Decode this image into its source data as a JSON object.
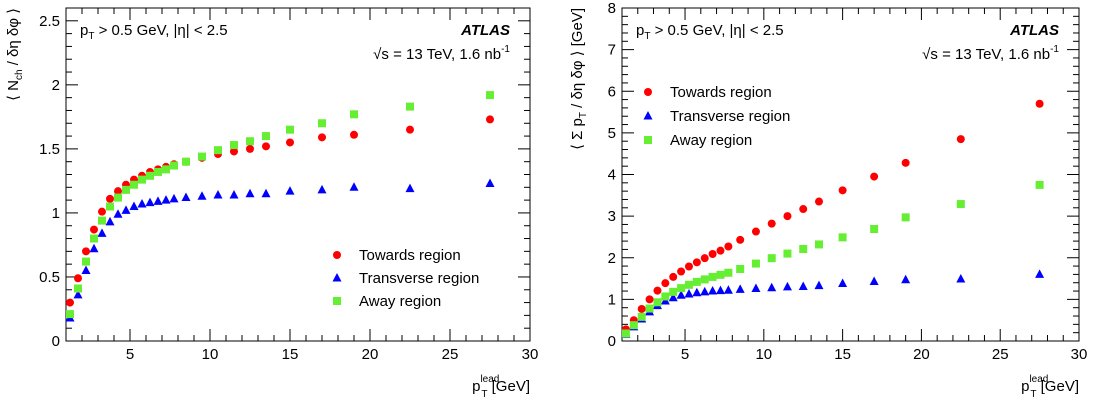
{
  "chart_data": [
    {
      "type": "scatter",
      "title": "",
      "ylabel": {
        "pre": "⟨ N",
        "sub": "ch",
        "post": "/ δη δφ ⟩"
      },
      "xlabel": {
        "pre": "p",
        "sub": "T",
        "sup": "lead",
        "post": " [GeV]"
      },
      "xlim": [
        1,
        30
      ],
      "ylim": [
        0,
        2.6
      ],
      "xticks": [
        5,
        10,
        15,
        20,
        25,
        30
      ],
      "yticks": [
        0,
        0.5,
        1,
        1.5,
        2,
        2.5
      ],
      "ytick_labels": [
        "0",
        "0.5",
        "1",
        "1.5",
        "2",
        "2.5"
      ],
      "annotations": {
        "atlas": "ATLAS",
        "cuts": {
          "p": "p",
          "sub": "T",
          "rest": " > 0.5 GeV, |η| < 2.5"
        },
        "energy": {
          "sqrt": "√",
          "s": "s = 13 TeV, 1.6 nb",
          "sup": "-1"
        }
      },
      "legend_position": "bottom-right",
      "x": [
        1.25,
        1.75,
        2.25,
        2.75,
        3.25,
        3.75,
        4.25,
        4.75,
        5.25,
        5.75,
        6.25,
        6.75,
        7.25,
        7.75,
        8.5,
        9.5,
        10.5,
        11.5,
        12.5,
        13.5,
        15,
        17,
        19,
        22.5,
        27.5
      ],
      "series": [
        {
          "name": "Towards region",
          "marker": "circle",
          "color": "#ff0000",
          "values": [
            0.3,
            0.49,
            0.7,
            0.87,
            1.01,
            1.11,
            1.17,
            1.22,
            1.26,
            1.29,
            1.32,
            1.34,
            1.36,
            1.38,
            1.4,
            1.43,
            1.46,
            1.48,
            1.5,
            1.52,
            1.55,
            1.59,
            1.61,
            1.65,
            1.73
          ]
        },
        {
          "name": "Transverse region",
          "marker": "triangle",
          "color": "#0000ff",
          "values": [
            0.18,
            0.36,
            0.55,
            0.72,
            0.84,
            0.93,
            0.99,
            1.02,
            1.05,
            1.07,
            1.08,
            1.09,
            1.1,
            1.11,
            1.12,
            1.13,
            1.14,
            1.14,
            1.15,
            1.15,
            1.17,
            1.18,
            1.2,
            1.19,
            1.23
          ]
        },
        {
          "name": "Away region",
          "marker": "square",
          "color": "#66ee33",
          "values": [
            0.21,
            0.41,
            0.62,
            0.8,
            0.94,
            1.05,
            1.12,
            1.18,
            1.22,
            1.26,
            1.29,
            1.32,
            1.34,
            1.37,
            1.4,
            1.44,
            1.49,
            1.53,
            1.56,
            1.6,
            1.65,
            1.7,
            1.77,
            1.83,
            1.92
          ]
        }
      ]
    },
    {
      "type": "scatter",
      "title": "",
      "ylabel": {
        "pre": "⟨ Σ p",
        "sub": "T",
        "post": "/ δη δφ ⟩ [GeV]"
      },
      "xlabel": {
        "pre": "p",
        "sub": "T",
        "sup": "lead",
        "post": " [GeV]"
      },
      "xlim": [
        1,
        30
      ],
      "ylim": [
        0,
        8
      ],
      "xticks": [
        5,
        10,
        15,
        20,
        25,
        30
      ],
      "yticks": [
        0,
        1,
        2,
        3,
        4,
        5,
        6,
        7,
        8
      ],
      "ytick_labels": [
        "0",
        "1",
        "2",
        "3",
        "4",
        "5",
        "6",
        "7",
        "8"
      ],
      "annotations": {
        "atlas": "ATLAS",
        "cuts": {
          "p": "p",
          "sub": "T",
          "rest": " > 0.5 GeV, |η| < 2.5"
        },
        "energy": {
          "sqrt": "√",
          "s": "s = 13 TeV, 1.6 nb",
          "sup": "-1"
        }
      },
      "legend_position": "top-left",
      "x": [
        1.25,
        1.75,
        2.25,
        2.75,
        3.25,
        3.75,
        4.25,
        4.75,
        5.25,
        5.75,
        6.25,
        6.75,
        7.25,
        7.75,
        8.5,
        9.5,
        10.5,
        11.5,
        12.5,
        13.5,
        15,
        17,
        19,
        22.5,
        27.5
      ],
      "series": [
        {
          "name": "Towards region",
          "marker": "circle",
          "color": "#ff0000",
          "values": [
            0.28,
            0.5,
            0.77,
            1.0,
            1.21,
            1.39,
            1.54,
            1.67,
            1.79,
            1.89,
            1.99,
            2.09,
            2.17,
            2.27,
            2.43,
            2.63,
            2.82,
            3.0,
            3.17,
            3.35,
            3.62,
            3.95,
            4.28,
            4.85,
            5.7
          ]
        },
        {
          "name": "Transverse region",
          "marker": "triangle",
          "color": "#0000ff",
          "values": [
            0.16,
            0.34,
            0.53,
            0.7,
            0.85,
            0.96,
            1.04,
            1.1,
            1.13,
            1.16,
            1.18,
            1.2,
            1.21,
            1.22,
            1.24,
            1.26,
            1.28,
            1.3,
            1.31,
            1.33,
            1.38,
            1.43,
            1.47,
            1.49,
            1.6
          ]
        },
        {
          "name": "Away region",
          "marker": "square",
          "color": "#66ee33",
          "values": [
            0.18,
            0.38,
            0.58,
            0.78,
            0.93,
            1.07,
            1.18,
            1.27,
            1.35,
            1.42,
            1.48,
            1.54,
            1.59,
            1.64,
            1.73,
            1.86,
            1.99,
            2.1,
            2.21,
            2.32,
            2.49,
            2.69,
            2.97,
            3.29,
            3.75
          ]
        }
      ]
    }
  ]
}
